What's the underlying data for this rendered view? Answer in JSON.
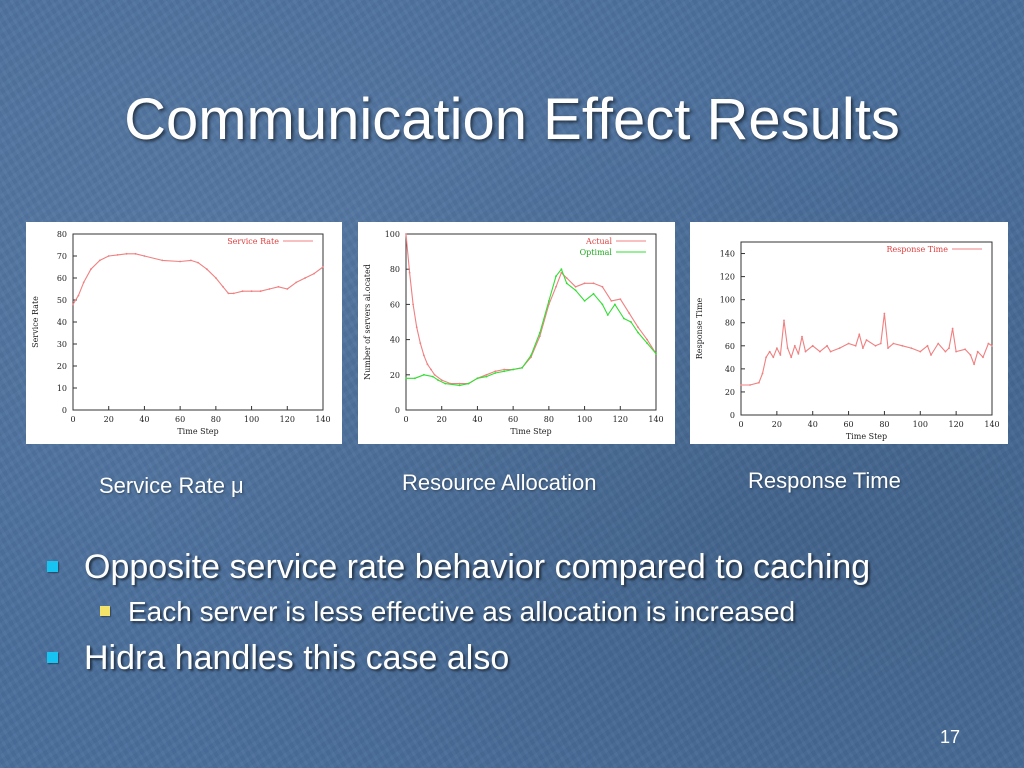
{
  "slide": {
    "title": "Communication Effect Results",
    "captions": [
      "Service Rate μ",
      "Resource Allocation",
      "Response Time"
    ],
    "bullets": [
      "Opposite service rate behavior compared to caching",
      "Each server is less effective as allocation is increased",
      "Hidra handles this case also"
    ],
    "page_number": "17"
  },
  "colors": {
    "background": "#4a6f9c",
    "accent_bullet": "#17c3f0",
    "sub_bullet": "#f3e36a",
    "actual": "#f08080",
    "optimal": "#33dd33"
  },
  "chart_data": [
    {
      "type": "line",
      "xlabel": "Time Step",
      "ylabel": "Service Rate",
      "xlim": [
        0,
        140
      ],
      "ylim": [
        0,
        80
      ],
      "xticks": [
        "0",
        "20",
        "40",
        "60",
        "80",
        "100",
        "120",
        "140"
      ],
      "yticks": [
        "0",
        "10",
        "20",
        "30",
        "40",
        "50",
        "60",
        "70",
        "80"
      ],
      "legend_position": "top-right",
      "series": [
        {
          "name": "Service Rate",
          "color": "#f08080",
          "points": [
            [
              0,
              48
            ],
            [
              3,
              52
            ],
            [
              6,
              58
            ],
            [
              10,
              64
            ],
            [
              15,
              68
            ],
            [
              20,
              70
            ],
            [
              25,
              70.5
            ],
            [
              30,
              71
            ],
            [
              35,
              71
            ],
            [
              40,
              70
            ],
            [
              50,
              68
            ],
            [
              60,
              67.5
            ],
            [
              66,
              68
            ],
            [
              70,
              67
            ],
            [
              75,
              64
            ],
            [
              80,
              60
            ],
            [
              84,
              56
            ],
            [
              87,
              53
            ],
            [
              90,
              53
            ],
            [
              95,
              54
            ],
            [
              100,
              54
            ],
            [
              105,
              54
            ],
            [
              110,
              55
            ],
            [
              115,
              56
            ],
            [
              120,
              55
            ],
            [
              125,
              58
            ],
            [
              130,
              60
            ],
            [
              135,
              62
            ],
            [
              140,
              65
            ]
          ]
        }
      ]
    },
    {
      "type": "line",
      "xlabel": "Time Step",
      "ylabel": "Number of servers al.ocated",
      "xlim": [
        0,
        140
      ],
      "ylim": [
        0,
        100
      ],
      "xticks": [
        "0",
        "20",
        "40",
        "60",
        "80",
        "100",
        "120",
        "140"
      ],
      "yticks": [
        "0",
        "20",
        "40",
        "60",
        "80",
        "100"
      ],
      "legend_position": "top-right",
      "series": [
        {
          "name": "Actual",
          "color": "#f08080",
          "points": [
            [
              0,
              100
            ],
            [
              2,
              78
            ],
            [
              4,
              60
            ],
            [
              6,
              47
            ],
            [
              8,
              38
            ],
            [
              10,
              31
            ],
            [
              12,
              26
            ],
            [
              14,
              23
            ],
            [
              16,
              20
            ],
            [
              20,
              17
            ],
            [
              25,
              15
            ],
            [
              30,
              15
            ],
            [
              35,
              15
            ],
            [
              40,
              18
            ],
            [
              45,
              20
            ],
            [
              50,
              22
            ],
            [
              55,
              23
            ],
            [
              60,
              23
            ],
            [
              65,
              24
            ],
            [
              70,
              30
            ],
            [
              75,
              42
            ],
            [
              80,
              60
            ],
            [
              84,
              70
            ],
            [
              87,
              78
            ],
            [
              90,
              75
            ],
            [
              95,
              70
            ],
            [
              100,
              72
            ],
            [
              105,
              72
            ],
            [
              110,
              70
            ],
            [
              115,
              62
            ],
            [
              120,
              63
            ],
            [
              125,
              55
            ],
            [
              130,
              47
            ],
            [
              135,
              40
            ],
            [
              140,
              32
            ]
          ]
        },
        {
          "name": "Optimal",
          "color": "#33dd33",
          "points": [
            [
              0,
              18
            ],
            [
              5,
              18
            ],
            [
              10,
              20
            ],
            [
              15,
              19
            ],
            [
              18,
              17
            ],
            [
              22,
              15
            ],
            [
              30,
              14
            ],
            [
              35,
              15
            ],
            [
              40,
              18
            ],
            [
              45,
              19
            ],
            [
              50,
              21
            ],
            [
              55,
              22
            ],
            [
              60,
              23
            ],
            [
              65,
              24
            ],
            [
              70,
              31
            ],
            [
              75,
              44
            ],
            [
              80,
              62
            ],
            [
              84,
              76
            ],
            [
              87,
              80
            ],
            [
              90,
              72
            ],
            [
              95,
              68
            ],
            [
              100,
              62
            ],
            [
              105,
              66
            ],
            [
              110,
              60
            ],
            [
              113,
              54
            ],
            [
              117,
              60
            ],
            [
              122,
              52
            ],
            [
              126,
              50
            ],
            [
              130,
              44
            ],
            [
              135,
              38
            ],
            [
              140,
              32
            ]
          ]
        }
      ]
    },
    {
      "type": "line",
      "xlabel": "Time Step",
      "ylabel": "Response Time",
      "xlim": [
        0,
        140
      ],
      "ylim": [
        0,
        150
      ],
      "xticks": [
        "0",
        "20",
        "40",
        "60",
        "80",
        "100",
        "120",
        "140"
      ],
      "yticks": [
        "0",
        "20",
        "40",
        "60",
        "80",
        "100",
        "120",
        "140"
      ],
      "legend_position": "top-right",
      "series": [
        {
          "name": "Response Time",
          "color": "#f08080",
          "points": [
            [
              0,
              26
            ],
            [
              5,
              26
            ],
            [
              10,
              28
            ],
            [
              12,
              36
            ],
            [
              14,
              50
            ],
            [
              16,
              55
            ],
            [
              18,
              50
            ],
            [
              20,
              58
            ],
            [
              22,
              52
            ],
            [
              24,
              82
            ],
            [
              26,
              58
            ],
            [
              28,
              50
            ],
            [
              30,
              60
            ],
            [
              32,
              53
            ],
            [
              34,
              68
            ],
            [
              36,
              55
            ],
            [
              40,
              60
            ],
            [
              44,
              55
            ],
            [
              48,
              60
            ],
            [
              50,
              55
            ],
            [
              55,
              58
            ],
            [
              60,
              62
            ],
            [
              64,
              60
            ],
            [
              66,
              70
            ],
            [
              68,
              58
            ],
            [
              70,
              65
            ],
            [
              75,
              60
            ],
            [
              78,
              62
            ],
            [
              80,
              88
            ],
            [
              82,
              58
            ],
            [
              85,
              62
            ],
            [
              90,
              60
            ],
            [
              95,
              58
            ],
            [
              100,
              55
            ],
            [
              104,
              60
            ],
            [
              106,
              52
            ],
            [
              110,
              62
            ],
            [
              114,
              55
            ],
            [
              116,
              58
            ],
            [
              118,
              75
            ],
            [
              120,
              55
            ],
            [
              125,
              57
            ],
            [
              128,
              52
            ],
            [
              130,
              44
            ],
            [
              132,
              55
            ],
            [
              135,
              50
            ],
            [
              138,
              62
            ],
            [
              140,
              60
            ]
          ]
        }
      ]
    }
  ]
}
